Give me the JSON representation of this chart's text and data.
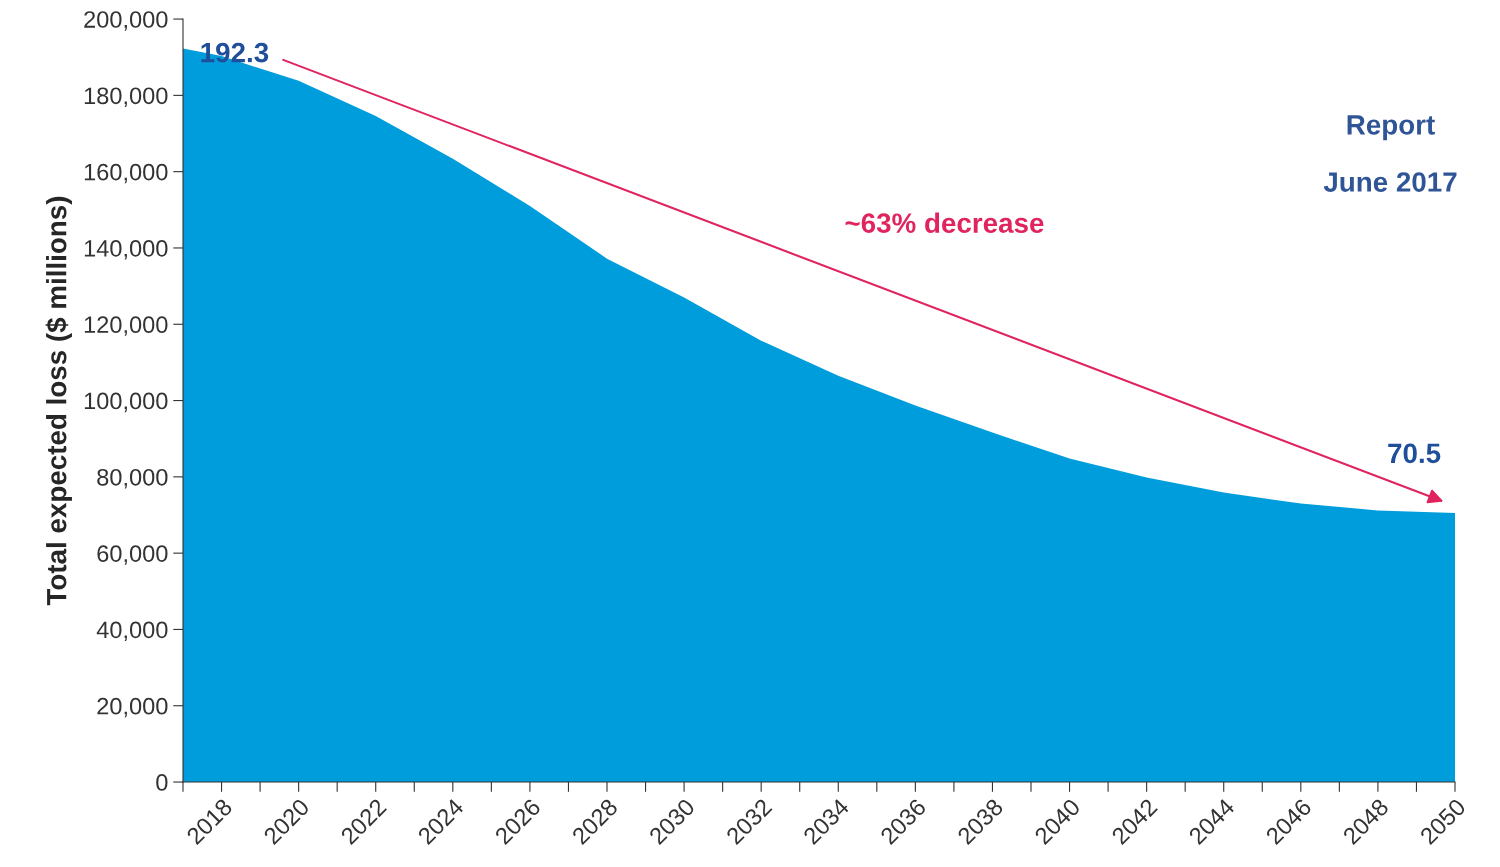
{
  "chart_data": {
    "type": "area",
    "ylabel": "Total expected loss ($ millions)",
    "x": [
      2017,
      2018,
      2020,
      2022,
      2024,
      2026,
      2028,
      2030,
      2032,
      2034,
      2036,
      2038,
      2040,
      2042,
      2044,
      2046,
      2048,
      2050
    ],
    "series": [
      {
        "color": "#009ddc",
        "values": [
          192300,
          190300,
          183800,
          174600,
          163400,
          151000,
          137200,
          127000,
          115700,
          106500,
          98700,
          91600,
          84800,
          79800,
          75900,
          73000,
          71200,
          70500
        ]
      }
    ],
    "xlim": [
      2017,
      2050
    ],
    "xticks": [
      {
        "value": 2017,
        "label": null
      },
      2018,
      {
        "value": 2019,
        "label": null
      },
      2020,
      {
        "value": 2021,
        "label": null
      },
      2022,
      {
        "value": 2023,
        "label": null
      },
      2024,
      {
        "value": 2025,
        "label": null
      },
      2026,
      {
        "value": 2027,
        "label": null
      },
      2028,
      {
        "value": 2029,
        "label": null
      },
      2030,
      {
        "value": 2031,
        "label": null
      },
      2032,
      {
        "value": 2033,
        "label": null
      },
      2034,
      {
        "value": 2035,
        "label": null
      },
      2036,
      {
        "value": 2037,
        "label": null
      },
      2038,
      {
        "value": 2039,
        "label": null
      },
      2040,
      {
        "value": 2041,
        "label": null
      },
      2042,
      {
        "value": 2043,
        "label": null
      },
      2044,
      {
        "value": 2045,
        "label": null
      },
      2046,
      {
        "value": 2047,
        "label": null
      },
      2048,
      {
        "value": 2049,
        "label": null
      },
      2050
    ],
    "ylim": [
      0,
      200000
    ],
    "yticks": [
      0,
      {
        "value": 20000,
        "label": "20,000"
      },
      {
        "value": 40000,
        "label": "40,000"
      },
      {
        "value": 60000,
        "label": "60,000"
      },
      {
        "value": 80000,
        "label": "80,000"
      },
      {
        "value": 100000,
        "label": "100,000"
      },
      {
        "value": 120000,
        "label": "120,000"
      },
      {
        "value": 140000,
        "label": "140,000"
      },
      {
        "value": 160000,
        "label": "160,000"
      },
      {
        "value": 180000,
        "label": "180,000"
      },
      {
        "value": 200000,
        "label": "200,000"
      }
    ],
    "grid": false,
    "legend": false,
    "annotations": [
      {
        "text": "192.3",
        "x": 2017,
        "y": 192300
      },
      {
        "text": "70.5",
        "x": 2050,
        "y": 70500
      },
      "~63% decrease",
      "Report",
      "June 2017"
    ]
  }
}
